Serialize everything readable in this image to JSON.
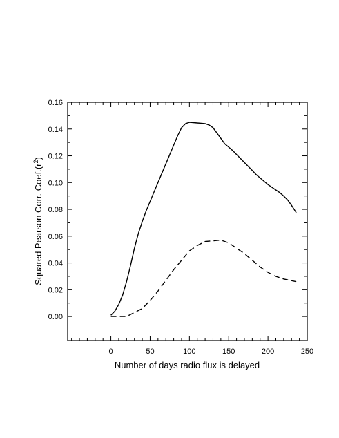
{
  "chart_data": {
    "type": "line",
    "xlabel": "Number of days radio flux is delayed",
    "ylabel_main": "Squared Pearson Corr. Coef.(r",
    "ylabel_sup": "2",
    "ylabel_close": ")",
    "xlim": [
      -55,
      250
    ],
    "ylim": [
      -0.018,
      0.16
    ],
    "x_ticks": [
      0,
      50,
      100,
      150,
      200,
      250
    ],
    "x_tick_labels": [
      "0",
      "50",
      "100",
      "150",
      "200",
      "250"
    ],
    "x_minor_ticks": [
      -50,
      -40,
      -30,
      -20,
      -10,
      10,
      20,
      30,
      40,
      60,
      70,
      80,
      90,
      110,
      120,
      130,
      140,
      160,
      170,
      180,
      190,
      210,
      220,
      230,
      240
    ],
    "y_ticks": [
      0.0,
      0.02,
      0.04,
      0.06,
      0.08,
      0.1,
      0.12,
      0.14,
      0.16
    ],
    "y_tick_labels": [
      "0.00",
      "0.02",
      "0.04",
      "0.06",
      "0.08",
      "0.10",
      "0.12",
      "0.14",
      "0.16"
    ],
    "y_minor_ticks": [
      0.01,
      0.03,
      0.05,
      0.07,
      0.09,
      0.11,
      0.13,
      0.15
    ],
    "grid": false,
    "legend": "none",
    "series": [
      {
        "style": "solid",
        "color": "#000000",
        "x": [
          0,
          5,
          10,
          15,
          20,
          25,
          30,
          35,
          40,
          45,
          50,
          55,
          60,
          65,
          70,
          75,
          80,
          85,
          90,
          95,
          100,
          105,
          110,
          115,
          120,
          125,
          130,
          135,
          140,
          145,
          150,
          155,
          160,
          165,
          170,
          175,
          180,
          185,
          190,
          195,
          200,
          205,
          210,
          215,
          220,
          225,
          230,
          236
        ],
        "y": [
          0.001,
          0.004,
          0.009,
          0.016,
          0.026,
          0.038,
          0.051,
          0.062,
          0.071,
          0.079,
          0.086,
          0.093,
          0.1,
          0.107,
          0.114,
          0.121,
          0.128,
          0.135,
          0.141,
          0.144,
          0.145,
          0.1448,
          0.1445,
          0.1443,
          0.144,
          0.143,
          0.141,
          0.137,
          0.133,
          0.129,
          0.1265,
          0.124,
          0.121,
          0.118,
          0.115,
          0.112,
          0.109,
          0.106,
          0.1035,
          0.101,
          0.0985,
          0.0965,
          0.0945,
          0.0925,
          0.09,
          0.087,
          0.083,
          0.0775
        ]
      },
      {
        "style": "dashed",
        "color": "#000000",
        "x": [
          0,
          10,
          20,
          30,
          40,
          50,
          60,
          70,
          80,
          90,
          100,
          110,
          120,
          130,
          140,
          150,
          160,
          170,
          180,
          190,
          200,
          210,
          220,
          236
        ],
        "y": [
          0.0,
          0.0,
          0.0,
          0.003,
          0.006,
          0.012,
          0.019,
          0.027,
          0.035,
          0.042,
          0.049,
          0.053,
          0.056,
          0.0565,
          0.057,
          0.055,
          0.051,
          0.047,
          0.042,
          0.037,
          0.033,
          0.03,
          0.028,
          0.026
        ]
      }
    ]
  }
}
